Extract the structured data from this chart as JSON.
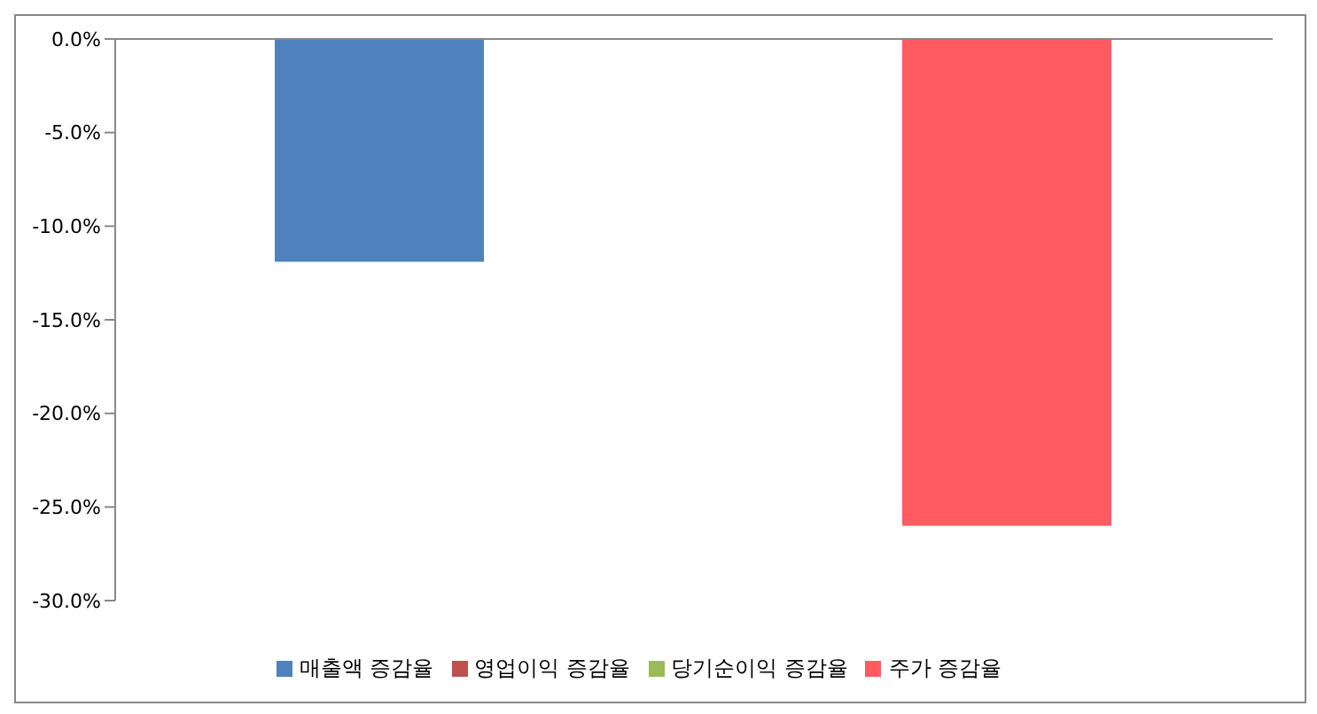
{
  "chart_data": {
    "type": "bar",
    "categories": [
      null
    ],
    "series": [
      {
        "name": "매출액 증감율",
        "color": "#4f81bd",
        "values": [
          -11.9
        ]
      },
      {
        "name": "영업이익 증감율",
        "color": "#c0504d",
        "values": [
          null
        ]
      },
      {
        "name": "당기순이익 증감율",
        "color": "#9bbb59",
        "values": [
          null
        ]
      },
      {
        "name": "주가 증감율",
        "color": "#ff5b61",
        "values": [
          -26.0
        ]
      }
    ],
    "ylim": [
      -30,
      0
    ],
    "yticks": [
      {
        "value": 0,
        "label": "0.0%"
      },
      {
        "value": -5,
        "label": "-5.0%"
      },
      {
        "value": -10,
        "label": "-10.0%"
      },
      {
        "value": -15,
        "label": "-15.0%"
      },
      {
        "value": -20,
        "label": "-20.0%"
      },
      {
        "value": -25,
        "label": "-25.0%"
      },
      {
        "value": -30,
        "label": "-30.0%"
      }
    ],
    "grid": false,
    "legend": "bottom"
  }
}
